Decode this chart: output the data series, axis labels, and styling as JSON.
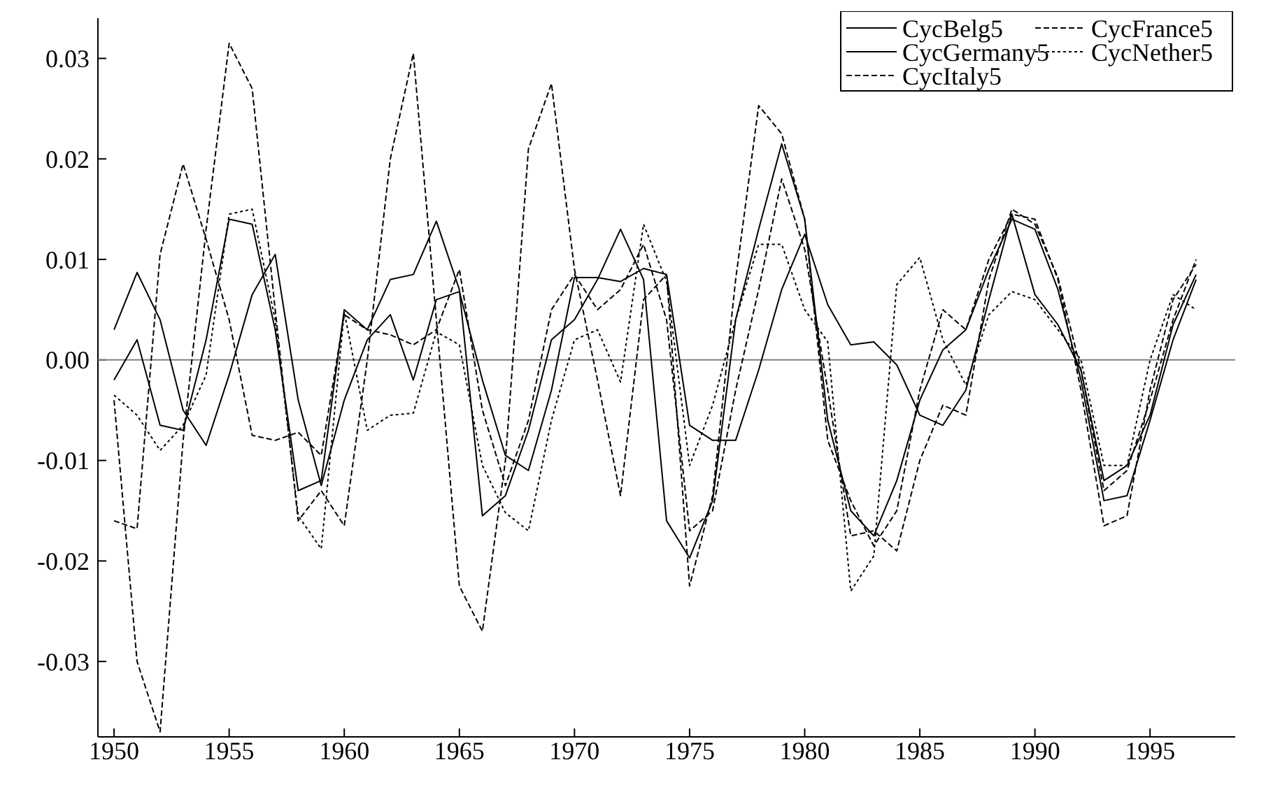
{
  "chart_data": {
    "type": "line",
    "x": [
      1950,
      1951,
      1952,
      1953,
      1954,
      1955,
      1956,
      1957,
      1958,
      1959,
      1960,
      1961,
      1962,
      1963,
      1964,
      1965,
      1966,
      1967,
      1968,
      1969,
      1970,
      1971,
      1972,
      1973,
      1974,
      1975,
      1976,
      1977,
      1978,
      1979,
      1980,
      1981,
      1982,
      1983,
      1984,
      1985,
      1986,
      1987,
      1988,
      1989,
      1990,
      1991,
      1992,
      1993,
      1994,
      1995,
      1996,
      1997
    ],
    "series": [
      {
        "name": "CycBelg5",
        "color": "#000000",
        "line_style": "solid",
        "values": [
          -0.002,
          0.002,
          -0.0065,
          -0.007,
          0.002,
          0.014,
          0.0135,
          0.003,
          -0.013,
          -0.012,
          0.005,
          0.003,
          0.008,
          0.0085,
          0.0138,
          0.007,
          -0.0155,
          -0.0135,
          -0.007,
          0.002,
          0.004,
          0.008,
          0.013,
          0.008,
          -0.016,
          -0.0197,
          -0.014,
          0.004,
          0.013,
          0.0215,
          0.014,
          -0.006,
          -0.015,
          -0.0175,
          -0.012,
          -0.004,
          0.001,
          0.003,
          0.009,
          0.014,
          0.013,
          0.007,
          -0.002,
          -0.014,
          -0.0135,
          -0.006,
          0.002,
          0.008
        ]
      },
      {
        "name": "CycFrance5",
        "color": "#000000",
        "line_style": "dashed",
        "values": [
          -0.016,
          -0.0168,
          0.0105,
          0.0195,
          0.012,
          0.004,
          -0.0075,
          -0.008,
          -0.0072,
          -0.0095,
          0.0045,
          0.003,
          0.0025,
          0.0015,
          0.003,
          0.009,
          -0.005,
          -0.0125,
          -0.006,
          0.005,
          0.0085,
          0.005,
          0.007,
          0.0115,
          0.004,
          -0.017,
          -0.015,
          -0.003,
          0.007,
          0.018,
          0.011,
          -0.003,
          -0.0175,
          -0.017,
          -0.019,
          -0.01,
          -0.0045,
          -0.0055,
          0.008,
          0.015,
          0.0135,
          0.0082,
          -0.001,
          -0.013,
          -0.011,
          -0.004,
          0.004,
          0.01
        ]
      },
      {
        "name": "CycGermany5",
        "color": "#000000",
        "line_style": "solid",
        "values": [
          0.003,
          0.0087,
          0.004,
          -0.005,
          -0.0085,
          -0.0015,
          0.0065,
          0.0105,
          -0.004,
          -0.0125,
          -0.004,
          0.002,
          0.0045,
          -0.002,
          0.006,
          0.0068,
          -0.002,
          -0.0095,
          -0.011,
          -0.003,
          0.0082,
          0.0082,
          0.0078,
          0.0091,
          0.0085,
          -0.0065,
          -0.008,
          -0.008,
          -0.001,
          0.007,
          0.0125,
          0.0055,
          0.0015,
          0.0018,
          -0.0005,
          -0.0055,
          -0.0065,
          -0.003,
          0.006,
          0.0145,
          0.0065,
          0.0035,
          -0.001,
          -0.012,
          -0.0105,
          -0.0055,
          0.0035,
          0.0085
        ]
      },
      {
        "name": "CycNether5",
        "color": "#000000",
        "line_style": "dotted",
        "values": [
          -0.0035,
          -0.0055,
          -0.009,
          -0.0065,
          -0.0015,
          0.0145,
          0.015,
          0.004,
          -0.0155,
          -0.0188,
          0.0048,
          -0.007,
          -0.0055,
          -0.0053,
          0.0028,
          0.0015,
          -0.0105,
          -0.0152,
          -0.017,
          -0.006,
          0.002,
          0.003,
          -0.0022,
          0.0135,
          0.0078,
          -0.0105,
          -0.0045,
          0.004,
          0.0115,
          0.0115,
          0.005,
          0.0018,
          -0.023,
          -0.0195,
          0.0075,
          0.0102,
          0.002,
          -0.0025,
          0.0045,
          0.0068,
          0.006,
          0.003,
          0,
          -0.0105,
          -0.0105,
          0,
          0.0065,
          0.005
        ]
      },
      {
        "name": "CycItaly5",
        "color": "#000000",
        "line_style": "dashed",
        "values": [
          -0.004,
          -0.03,
          -0.037,
          -0.008,
          0.013,
          0.0315,
          0.027,
          0.005,
          -0.016,
          -0.013,
          -0.0165,
          0,
          0.02,
          0.0305,
          0.004,
          -0.0225,
          -0.027,
          -0.01,
          0.021,
          0.0275,
          0.009,
          -0.002,
          -0.0135,
          0.006,
          0.0085,
          -0.0225,
          -0.0135,
          0.008,
          0.0253,
          0.0225,
          0.014,
          -0.008,
          -0.014,
          -0.0185,
          -0.015,
          -0.003,
          0.005,
          0.003,
          0.01,
          0.0145,
          0.014,
          0.008,
          -0.003,
          -0.0165,
          -0.0155,
          -0.003,
          0.006,
          0.0095
        ]
      }
    ],
    "xlim": [
      1949.3,
      1998.7
    ],
    "xticks": [
      1950,
      1955,
      1960,
      1965,
      1970,
      1975,
      1980,
      1985,
      1990,
      1995
    ],
    "ylim": [
      -0.0375,
      0.034
    ],
    "yticks": [
      -0.03,
      -0.02,
      -0.01,
      {
        "value": 0,
        "label": "0.00"
      },
      0.01,
      0.02,
      0.03
    ],
    "ref_lines": [
      {
        "axis": "y",
        "value": 0,
        "color": "#808080"
      }
    ],
    "grid": false,
    "legend": "top right"
  }
}
